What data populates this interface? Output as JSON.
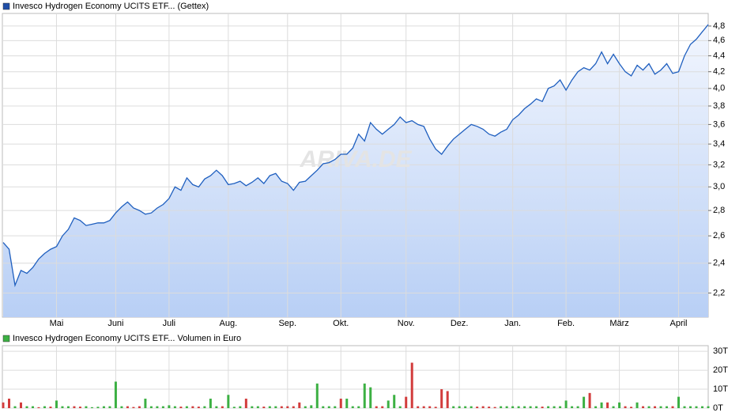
{
  "chart_data": [
    {
      "type": "line",
      "title": "Invesco Hydrogen Economy UCITS ETF... (Gettex)",
      "watermark": "ARIVA.DE",
      "log": true,
      "grid": true,
      "ylim": [
        2.05,
        4.98
      ],
      "xlim": [
        0,
        119
      ],
      "yticks": [
        {
          "value": 2.2,
          "label": "2,2"
        },
        {
          "value": 2.4,
          "label": "2,4"
        },
        {
          "value": 2.6,
          "label": "2,6"
        },
        {
          "value": 2.8,
          "label": "2,8"
        },
        {
          "value": 3.0,
          "label": "3,0"
        },
        {
          "value": 3.2,
          "label": "3,2"
        },
        {
          "value": 3.4,
          "label": "3,4"
        },
        {
          "value": 3.6,
          "label": "3,6"
        },
        {
          "value": 3.8,
          "label": "3,8"
        },
        {
          "value": 4.0,
          "label": "4,0"
        },
        {
          "value": 4.2,
          "label": "4,2"
        },
        {
          "value": 4.4,
          "label": "4,4"
        },
        {
          "value": 4.6,
          "label": "4,6"
        },
        {
          "value": 4.8,
          "label": "4,8"
        }
      ],
      "xticks": [
        {
          "value": 9,
          "label": "Mai"
        },
        {
          "value": 19,
          "label": "Juni"
        },
        {
          "value": 28,
          "label": "Juli"
        },
        {
          "value": 38,
          "label": "Aug."
        },
        {
          "value": 48,
          "label": "Sep."
        },
        {
          "value": 57,
          "label": "Okt."
        },
        {
          "value": 68,
          "label": "Nov."
        },
        {
          "value": 77,
          "label": "Dez."
        },
        {
          "value": 86,
          "label": "Jan."
        },
        {
          "value": 95,
          "label": "Feb."
        },
        {
          "value": 104,
          "label": "März"
        },
        {
          "value": 114,
          "label": "April"
        }
      ],
      "series": [
        {
          "color": "#1f5fbf",
          "values": [
            2.55,
            2.5,
            2.25,
            2.35,
            2.33,
            2.37,
            2.43,
            2.47,
            2.5,
            2.52,
            2.6,
            2.65,
            2.74,
            2.72,
            2.68,
            2.69,
            2.7,
            2.7,
            2.72,
            2.78,
            2.83,
            2.87,
            2.82,
            2.8,
            2.77,
            2.78,
            2.82,
            2.85,
            2.9,
            3.0,
            2.97,
            3.08,
            3.02,
            3.0,
            3.07,
            3.1,
            3.15,
            3.1,
            3.02,
            3.03,
            3.05,
            3.01,
            3.04,
            3.08,
            3.03,
            3.1,
            3.12,
            3.05,
            3.03,
            2.97,
            3.04,
            3.05,
            3.1,
            3.15,
            3.21,
            3.22,
            3.25,
            3.3,
            3.3,
            3.36,
            3.5,
            3.43,
            3.62,
            3.55,
            3.5,
            3.55,
            3.6,
            3.68,
            3.62,
            3.64,
            3.6,
            3.58,
            3.45,
            3.35,
            3.3,
            3.38,
            3.45,
            3.5,
            3.55,
            3.6,
            3.58,
            3.55,
            3.5,
            3.48,
            3.52,
            3.55,
            3.65,
            3.7,
            3.77,
            3.82,
            3.88,
            3.85,
            4.0,
            4.03,
            4.1,
            3.98,
            4.1,
            4.2,
            4.25,
            4.22,
            4.3,
            4.45,
            4.3,
            4.42,
            4.3,
            4.2,
            4.15,
            4.28,
            4.22,
            4.3,
            4.17,
            4.22,
            4.3,
            4.18,
            4.2,
            4.4,
            4.55,
            4.62,
            4.72,
            4.82
          ]
        }
      ]
    },
    {
      "type": "bar",
      "title": "Invesco Hydrogen Economy UCITS ETF... Volumen in Euro",
      "legend_color": "#3cb043",
      "grid": true,
      "ylim": [
        0,
        33
      ],
      "xlim": [
        0,
        119
      ],
      "yticks": [
        {
          "value": 0,
          "label": "0T"
        },
        {
          "value": 10,
          "label": "10T"
        },
        {
          "value": 20,
          "label": "20T"
        },
        {
          "value": 30,
          "label": "30T"
        }
      ],
      "values": [
        3,
        5,
        1,
        3,
        1,
        1,
        0.5,
        1,
        0.8,
        4,
        1,
        1,
        1,
        0.8,
        1,
        0.5,
        0.7,
        1,
        1,
        14,
        1,
        1,
        0.6,
        1,
        5,
        1,
        1,
        1,
        1.5,
        1,
        0.8,
        1,
        1,
        0.8,
        1,
        5,
        1,
        1,
        7,
        0.7,
        1,
        5,
        1,
        1,
        0.8,
        1,
        1,
        1,
        1,
        1,
        3,
        1,
        1.5,
        13,
        1,
        1,
        1,
        5,
        5,
        1,
        1,
        13,
        11,
        1,
        1,
        4,
        7,
        1,
        6,
        24,
        1,
        1,
        1,
        0.7,
        10,
        9,
        1,
        1,
        1,
        1,
        0.8,
        1,
        0.8,
        0.6,
        1,
        1,
        1,
        1,
        1,
        1,
        1,
        0.8,
        1,
        1,
        1,
        4,
        1,
        1,
        6,
        8,
        1,
        3,
        3,
        1,
        3,
        1,
        0.7,
        3,
        1,
        1,
        1,
        1,
        1,
        1,
        6,
        1,
        1,
        1,
        1,
        1
      ],
      "colors": [
        "#d23c3c",
        "#d23c3c",
        "#3cb043",
        "#d23c3c",
        "#3cb043",
        "#3cb043",
        "#d23c3c",
        "#3cb043",
        "#d23c3c",
        "#3cb043",
        "#3cb043",
        "#3cb043",
        "#d23c3c",
        "#d23c3c",
        "#3cb043",
        "#3cb043",
        "#3cb043",
        "#3cb043",
        "#3cb043",
        "#3cb043",
        "#3cb043",
        "#d23c3c",
        "#d23c3c",
        "#d23c3c",
        "#3cb043",
        "#3cb043",
        "#3cb043",
        "#3cb043",
        "#3cb043",
        "#3cb043",
        "#d23c3c",
        "#3cb043",
        "#d23c3c",
        "#d23c3c",
        "#3cb043",
        "#3cb043",
        "#3cb043",
        "#d23c3c",
        "#3cb043",
        "#3cb043",
        "#3cb043",
        "#d23c3c",
        "#3cb043",
        "#3cb043",
        "#d23c3c",
        "#3cb043",
        "#3cb043",
        "#d23c3c",
        "#d23c3c",
        "#d23c3c",
        "#d23c3c",
        "#3cb043",
        "#3cb043",
        "#3cb043",
        "#3cb043",
        "#3cb043",
        "#3cb043",
        "#d23c3c",
        "#3cb043",
        "#3cb043",
        "#3cb043",
        "#3cb043",
        "#3cb043",
        "#d23c3c",
        "#d23c3c",
        "#3cb043",
        "#3cb043",
        "#3cb043",
        "#d23c3c",
        "#d23c3c",
        "#d23c3c",
        "#d23c3c",
        "#d23c3c",
        "#d23c3c",
        "#d23c3c",
        "#d23c3c",
        "#3cb043",
        "#3cb043",
        "#3cb043",
        "#3cb043",
        "#d23c3c",
        "#d23c3c",
        "#d23c3c",
        "#d23c3c",
        "#3cb043",
        "#3cb043",
        "#3cb043",
        "#3cb043",
        "#3cb043",
        "#3cb043",
        "#3cb043",
        "#d23c3c",
        "#3cb043",
        "#3cb043",
        "#3cb043",
        "#3cb043",
        "#3cb043",
        "#3cb043",
        "#3cb043",
        "#d23c3c",
        "#3cb043",
        "#3cb043",
        "#d23c3c",
        "#3cb043",
        "#3cb043",
        "#d23c3c",
        "#d23c3c",
        "#3cb043",
        "#d23c3c",
        "#3cb043",
        "#d23c3c",
        "#3cb043",
        "#3cb043",
        "#d23c3c",
        "#3cb043",
        "#3cb043",
        "#3cb043",
        "#3cb043",
        "#3cb043",
        "#3cb043"
      ]
    }
  ]
}
